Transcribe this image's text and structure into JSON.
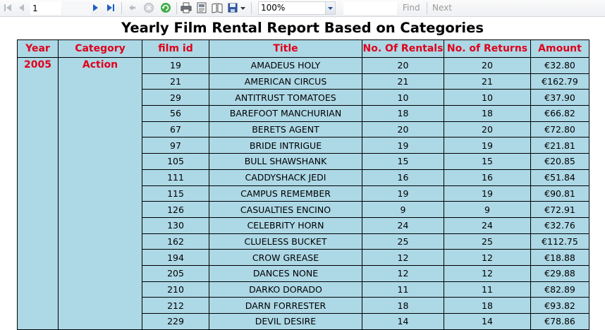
{
  "toolbar": {
    "page_number": "1",
    "zoom": "100%",
    "find_label": "Find",
    "next_label": "Next",
    "icons": [
      "first-page-icon",
      "previous-page-icon",
      "next-page-icon",
      "last-page-icon",
      "back-icon",
      "stop-icon",
      "refresh-icon",
      "print-icon",
      "print-layout-icon",
      "page-setup-icon",
      "export-icon"
    ]
  },
  "report": {
    "title": "Yearly Film Rental Report Based on Categories",
    "columns": [
      "Year",
      "Category",
      "film id",
      "Title",
      "No. Of Rentals",
      "No. of Returns",
      "Amount"
    ],
    "year": "2005",
    "category": "Action",
    "rows": [
      {
        "film_id": "19",
        "title": "AMADEUS HOLY",
        "rentals": "20",
        "returns": "20",
        "amount": "€32.80"
      },
      {
        "film_id": "21",
        "title": "AMERICAN CIRCUS",
        "rentals": "21",
        "returns": "21",
        "amount": "€162.79"
      },
      {
        "film_id": "29",
        "title": "ANTITRUST TOMATOES",
        "rentals": "10",
        "returns": "10",
        "amount": "€37.90"
      },
      {
        "film_id": "56",
        "title": "BAREFOOT MANCHURIAN",
        "rentals": "18",
        "returns": "18",
        "amount": "€66.82"
      },
      {
        "film_id": "67",
        "title": "BERETS AGENT",
        "rentals": "20",
        "returns": "20",
        "amount": "€72.80"
      },
      {
        "film_id": "97",
        "title": "BRIDE INTRIGUE",
        "rentals": "19",
        "returns": "19",
        "amount": "€21.81"
      },
      {
        "film_id": "105",
        "title": "BULL SHAWSHANK",
        "rentals": "15",
        "returns": "15",
        "amount": "€20.85"
      },
      {
        "film_id": "111",
        "title": "CADDYSHACK JEDI",
        "rentals": "16",
        "returns": "16",
        "amount": "€51.84"
      },
      {
        "film_id": "115",
        "title": "CAMPUS REMEMBER",
        "rentals": "19",
        "returns": "19",
        "amount": "€90.81"
      },
      {
        "film_id": "126",
        "title": "CASUALTIES ENCINO",
        "rentals": "9",
        "returns": "9",
        "amount": "€72.91"
      },
      {
        "film_id": "130",
        "title": "CELEBRITY HORN",
        "rentals": "24",
        "returns": "24",
        "amount": "€32.76"
      },
      {
        "film_id": "162",
        "title": "CLUELESS BUCKET",
        "rentals": "25",
        "returns": "25",
        "amount": "€112.75"
      },
      {
        "film_id": "194",
        "title": "CROW GREASE",
        "rentals": "12",
        "returns": "12",
        "amount": "€18.88"
      },
      {
        "film_id": "205",
        "title": "DANCES NONE",
        "rentals": "12",
        "returns": "12",
        "amount": "€29.88"
      },
      {
        "film_id": "210",
        "title": "DARKO DORADO",
        "rentals": "11",
        "returns": "11",
        "amount": "€82.89"
      },
      {
        "film_id": "212",
        "title": "DARN FORRESTER",
        "rentals": "18",
        "returns": "18",
        "amount": "€93.82"
      },
      {
        "film_id": "229",
        "title": "DEVIL DESIRE",
        "rentals": "14",
        "returns": "14",
        "amount": "€78.86"
      }
    ]
  }
}
